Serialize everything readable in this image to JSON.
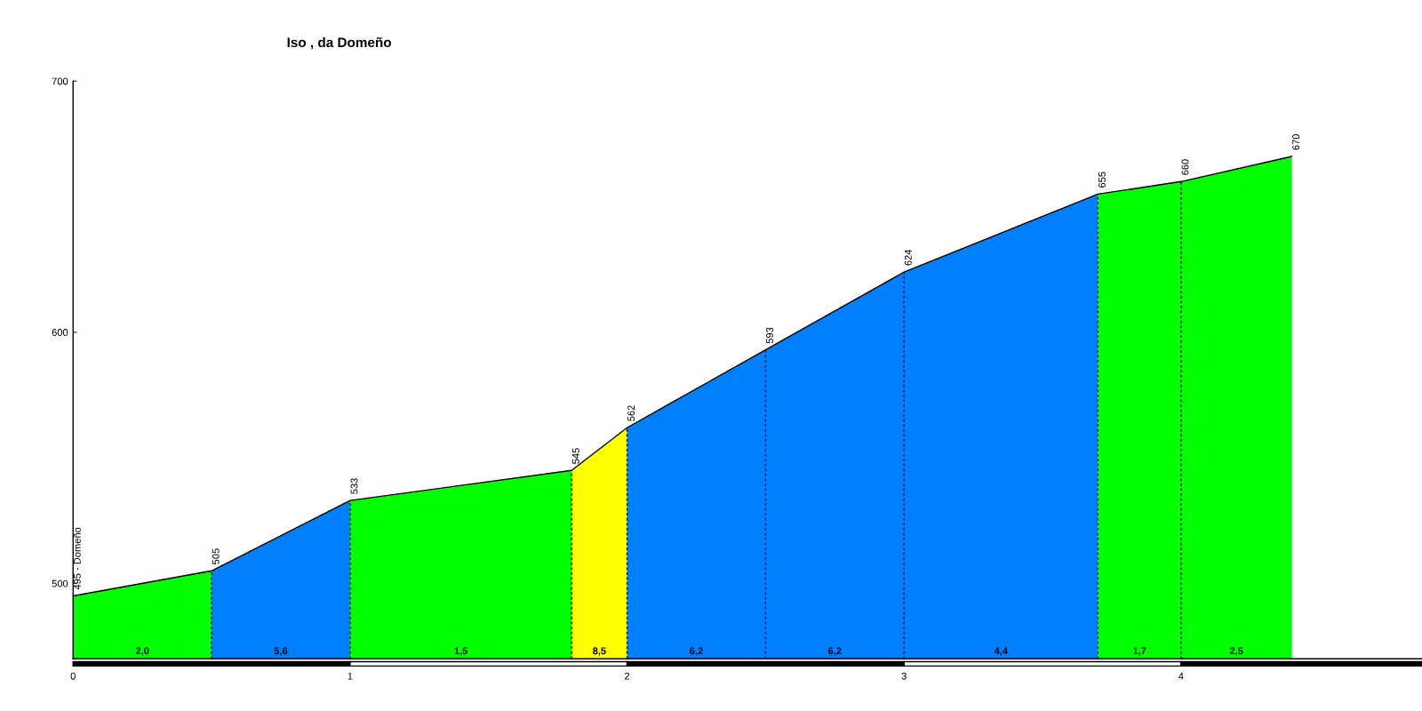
{
  "chart_data": {
    "type": "area",
    "title": "Iso , da Domeño",
    "xlim": [
      0,
      4.87
    ],
    "xticks": [
      0,
      1,
      2,
      3,
      4
    ],
    "ylim": [
      470,
      700
    ],
    "yticks": [
      500,
      600,
      700
    ],
    "series": [
      {
        "color": "#00ff00",
        "x": [
          0,
          0.5
        ],
        "values": [
          495,
          505
        ]
      },
      {
        "color": "#0080ff",
        "x": [
          0.5,
          1.0
        ],
        "values": [
          505,
          533
        ]
      },
      {
        "color": "#00ff00",
        "x": [
          1.0,
          1.8
        ],
        "values": [
          533,
          545
        ]
      },
      {
        "color": "#ffff00",
        "x": [
          1.8,
          2.0
        ],
        "values": [
          545,
          562
        ]
      },
      {
        "color": "#0080ff",
        "x": [
          2.0,
          2.5,
          3.0,
          3.7
        ],
        "values": [
          562,
          593,
          624,
          655
        ]
      },
      {
        "color": "#00ff00",
        "x": [
          3.7,
          4.0,
          4.4
        ],
        "values": [
          655,
          660,
          670
        ]
      },
      {
        "type": "line",
        "color": "#000000",
        "x": [
          0,
          0.5,
          1.0,
          1.8,
          2.0,
          2.5,
          3.0,
          3.7,
          4.0,
          4.4
        ],
        "values": [
          495,
          505,
          533,
          545,
          562,
          593,
          624,
          655,
          660,
          670
        ],
        "value_labels": [
          "495 - Domeño",
          "505",
          "533",
          "545",
          "562",
          "593",
          "624",
          "655",
          "660",
          "670"
        ]
      }
    ],
    "annotations": [
      {
        "text": "2,0",
        "x": 0.25,
        "y": 470
      },
      {
        "text": "5,6",
        "x": 0.75,
        "y": 470
      },
      {
        "text": "1,5",
        "x": 1.4,
        "y": 470
      },
      {
        "text": "8,5",
        "x": 1.9,
        "y": 470
      },
      {
        "text": "6,2",
        "x": 2.25,
        "y": 470
      },
      {
        "text": "6,2",
        "x": 2.75,
        "y": 470
      },
      {
        "text": "4,4",
        "x": 3.35,
        "y": 470
      },
      {
        "text": "1,7",
        "x": 3.85,
        "y": 470
      },
      {
        "text": "2,5",
        "x": 4.2,
        "y": 470
      }
    ]
  }
}
